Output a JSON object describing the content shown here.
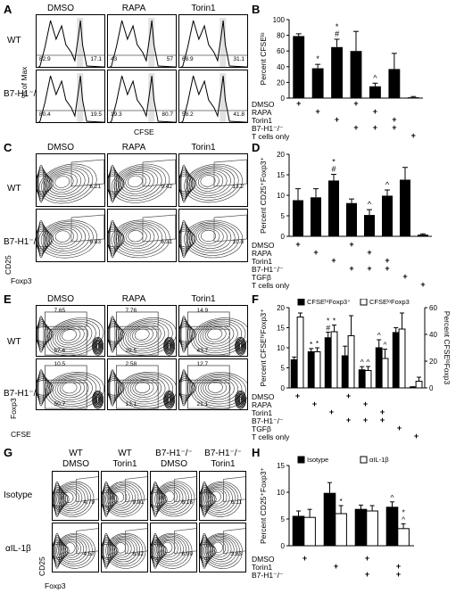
{
  "panel_letters": [
    "A",
    "B",
    "C",
    "D",
    "E",
    "F",
    "G",
    "H"
  ],
  "top_cols": [
    "DMSO",
    "RAPA",
    "Torin1"
  ],
  "g_cols": [
    [
      "WT",
      "DMSO"
    ],
    [
      "WT",
      "Torin1"
    ],
    [
      "B7-H1⁻/⁻",
      "DMSO"
    ],
    [
      "B7-H1⁻/⁻",
      "Torin1"
    ]
  ],
  "rows_wt_ko": [
    "WT",
    "B7-H1⁻/⁻"
  ],
  "rows_g": [
    "Isotype",
    "αIL-1β"
  ],
  "panelA": {
    "ylabel": "% of Max",
    "xlabel": "CFSE",
    "values": [
      [
        "82.9",
        "17.1"
      ],
      [
        "43",
        "57"
      ],
      [
        "68.9",
        "31.1"
      ],
      [
        "80.4",
        "19.5"
      ],
      [
        "19.3",
        "80.7"
      ],
      [
        "58.2",
        "41.8"
      ]
    ]
  },
  "panelC": {
    "xlabel": "Foxp3",
    "ylabel": "CD25",
    "values": [
      "6.21",
      "9.42",
      "13.2",
      "6.83",
      "6.31",
      "10.8"
    ]
  },
  "panelE": {
    "xlabel": "CFSE",
    "ylabel": "Foxp3",
    "top_values": [
      "7.65",
      "7.76",
      "14.9",
      "10.5",
      "2.58",
      "12.7"
    ],
    "bottom_values": [
      "57.6",
      "25.5",
      "43.7",
      "50.7",
      "13.1",
      "21.1"
    ]
  },
  "panelG": {
    "xlabel": "Foxp3",
    "ylabel": "CD25",
    "values": [
      "4.79",
      "9.91",
      "6.16",
      "6.11",
      "4.57",
      "6.82",
      "6.99",
      "3.83"
    ]
  },
  "chart_data": [
    {
      "type": "bar",
      "panel": "B",
      "ylabel": "Percent CFSEˡᵒ",
      "ylim": [
        0,
        100
      ],
      "yticks": [
        0,
        20,
        40,
        60,
        80,
        100
      ],
      "values": [
        79,
        38,
        65,
        60,
        15,
        37,
        1
      ],
      "errors": [
        3,
        5,
        10,
        25,
        4,
        20,
        1
      ],
      "annotations": [
        "",
        "*",
        "*\n#",
        "",
        "^",
        "",
        ""
      ],
      "conditions": [
        {
          "label": "DMSO",
          "marks": [
            1,
            0,
            0,
            1,
            0,
            0,
            0
          ]
        },
        {
          "label": "RAPA",
          "marks": [
            0,
            1,
            0,
            0,
            1,
            0,
            0
          ]
        },
        {
          "label": "Torin1",
          "marks": [
            0,
            0,
            1,
            0,
            0,
            1,
            0
          ]
        },
        {
          "label": "B7-H1⁻/⁻",
          "marks": [
            0,
            0,
            0,
            1,
            1,
            1,
            0
          ]
        },
        {
          "label": "T cells only",
          "marks": [
            0,
            0,
            0,
            0,
            0,
            0,
            1
          ]
        }
      ]
    },
    {
      "type": "bar",
      "panel": "D",
      "ylabel": "Percent CD25⁺Foxp3⁺",
      "ylim": [
        0,
        20
      ],
      "yticks": [
        0,
        5,
        10,
        15,
        20
      ],
      "values": [
        8.8,
        9.5,
        13.6,
        8.1,
        5.2,
        9.9,
        13.8,
        0.4
      ],
      "errors": [
        2.8,
        2.1,
        1.5,
        1.0,
        1.3,
        1.4,
        3.0,
        0.2
      ],
      "annotations": [
        "",
        "",
        "*\n#",
        "",
        "^",
        "^",
        "",
        ""
      ],
      "conditions": [
        {
          "label": "DMSO",
          "marks": [
            1,
            0,
            0,
            1,
            0,
            0,
            0,
            0
          ]
        },
        {
          "label": "RAPA",
          "marks": [
            0,
            1,
            0,
            0,
            1,
            0,
            0,
            0
          ]
        },
        {
          "label": "Torin1",
          "marks": [
            0,
            0,
            1,
            0,
            0,
            1,
            0,
            0
          ]
        },
        {
          "label": "B7-H1⁻/⁻",
          "marks": [
            0,
            0,
            0,
            1,
            1,
            1,
            0,
            0
          ]
        },
        {
          "label": "TGFβ",
          "marks": [
            0,
            0,
            0,
            0,
            0,
            0,
            1,
            0
          ]
        },
        {
          "label": "T cells only",
          "marks": [
            0,
            0,
            0,
            0,
            0,
            0,
            0,
            1
          ]
        }
      ]
    },
    {
      "type": "bar",
      "panel": "F",
      "ylabel": "Percent CFSEʰⁱFoxp3⁺",
      "ylabel_right": "Percent CFSEˡᵒFoxp3",
      "ylim": [
        0,
        20
      ],
      "yticks": [
        0,
        5,
        10,
        15,
        20
      ],
      "ylim_right": [
        0,
        60
      ],
      "yticks_right": [
        0,
        20,
        40,
        60
      ],
      "legend": [
        "CFSEʰⁱFoxp3⁺",
        "CFSEˡᵒFoxp3"
      ],
      "series": [
        {
          "name": "CFSEʰⁱFoxp3⁺",
          "values": [
            7.0,
            9.0,
            12.5,
            8.0,
            4.5,
            10.0,
            13.8,
            0.2
          ],
          "errors": [
            0.7,
            0.8,
            1.4,
            2.4,
            0.8,
            2.0,
            1.2,
            0.1
          ]
        },
        {
          "name": "CFSEˡᵒFoxp3",
          "values": [
            53,
            27,
            42,
            39,
            13,
            22,
            44,
            5
          ],
          "errors": [
            3,
            3,
            5,
            15,
            3,
            7,
            12,
            3
          ]
        }
      ],
      "annotations_black": [
        "",
        "*",
        "*\n#",
        "",
        "^",
        "^",
        "",
        ""
      ],
      "annotations_white": [
        "",
        "*",
        "*",
        "",
        "^",
        "^",
        "",
        ""
      ],
      "conditions": [
        {
          "label": "DMSO",
          "marks": [
            1,
            0,
            0,
            1,
            0,
            0,
            0,
            0
          ]
        },
        {
          "label": "RAPA",
          "marks": [
            0,
            1,
            0,
            0,
            1,
            0,
            0,
            0
          ]
        },
        {
          "label": "Torin1",
          "marks": [
            0,
            0,
            1,
            0,
            0,
            1,
            0,
            0
          ]
        },
        {
          "label": "B7-H1⁻/⁻",
          "marks": [
            0,
            0,
            0,
            1,
            1,
            1,
            0,
            0
          ]
        },
        {
          "label": "TGFβ",
          "marks": [
            0,
            0,
            0,
            0,
            0,
            0,
            1,
            0
          ]
        },
        {
          "label": "T cells only",
          "marks": [
            0,
            0,
            0,
            0,
            0,
            0,
            0,
            1
          ]
        }
      ]
    },
    {
      "type": "bar",
      "panel": "H",
      "ylabel": "Percent CD25⁺Foxp3⁺",
      "ylim": [
        0,
        15
      ],
      "yticks": [
        0,
        5,
        10,
        15
      ],
      "legend": [
        "Isotype",
        "αIL-1β"
      ],
      "series": [
        {
          "name": "Isotype",
          "values": [
            5.5,
            9.8,
            6.8,
            7.2
          ],
          "errors": [
            1.0,
            2.0,
            0.8,
            1.0
          ]
        },
        {
          "name": "αIL-1β",
          "values": [
            5.3,
            6.0,
            6.5,
            3.2
          ],
          "errors": [
            1.5,
            1.5,
            1.0,
            0.9
          ]
        }
      ],
      "annotations_black": [
        "",
        "",
        "",
        "^"
      ],
      "annotations_white": [
        "",
        "*",
        "",
        "*\n^"
      ],
      "conditions": [
        {
          "label": "DMSO",
          "marks": [
            1,
            0,
            1,
            0
          ]
        },
        {
          "label": "Torin1",
          "marks": [
            0,
            1,
            0,
            1
          ]
        },
        {
          "label": "B7-H1⁻/⁻",
          "marks": [
            0,
            0,
            1,
            1
          ]
        }
      ]
    }
  ]
}
